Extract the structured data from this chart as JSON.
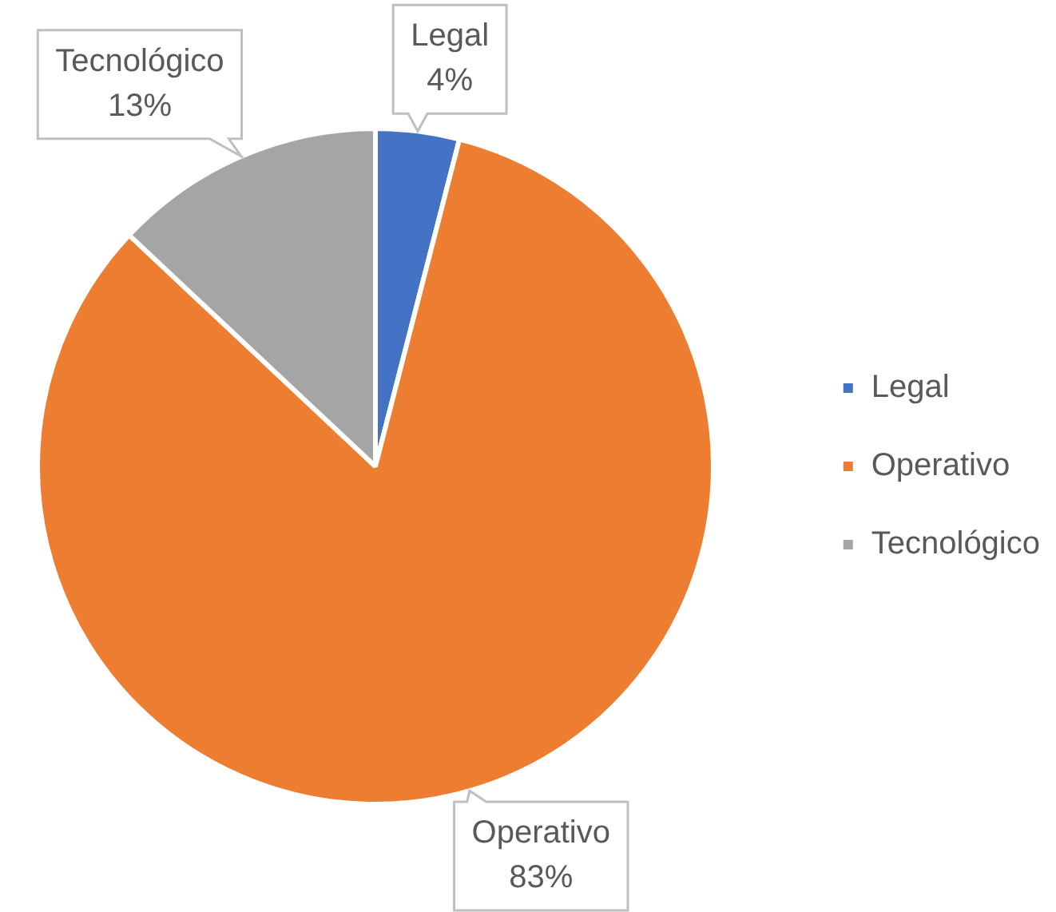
{
  "chart_data": {
    "type": "pie",
    "categories": [
      "Legal",
      "Operativo",
      "Tecnológico"
    ],
    "values": [
      4,
      83,
      13
    ],
    "colors": [
      "#4472c4",
      "#ed7d31",
      "#a5a5a5"
    ],
    "value_labels": [
      "4%",
      "83%",
      "13%"
    ],
    "legend": "right"
  }
}
